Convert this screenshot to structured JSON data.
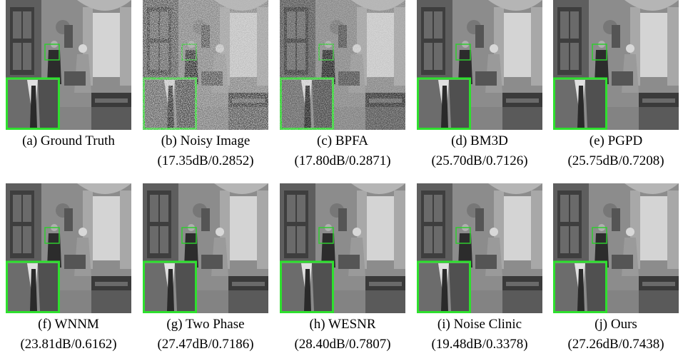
{
  "figure": {
    "panels": [
      {
        "label": "(a) Ground Truth"
      },
      {
        "label": "(b) Noisy Image",
        "metrics": "(17.35dB/0.2852)"
      },
      {
        "label": "(c) BPFA",
        "metrics": "(17.80dB/0.2871)"
      },
      {
        "label": "(d) BM3D",
        "metrics": "(25.70dB/0.7126)"
      },
      {
        "label": "(e) PGPD",
        "metrics": "(25.75dB/0.7208)"
      },
      {
        "label": "(f) WNNM",
        "metrics": "(23.81dB/0.6162)"
      },
      {
        "label": "(g) Two Phase",
        "metrics": "(27.47dB/0.7186)"
      },
      {
        "label": "(h) WESNR",
        "metrics": "(28.40dB/0.7807)"
      },
      {
        "label": "(i) Noise Clinic",
        "metrics": "(19.48dB/0.3378)"
      },
      {
        "label": "(j) Ours",
        "metrics": "(27.26dB/0.7438)"
      }
    ]
  }
}
